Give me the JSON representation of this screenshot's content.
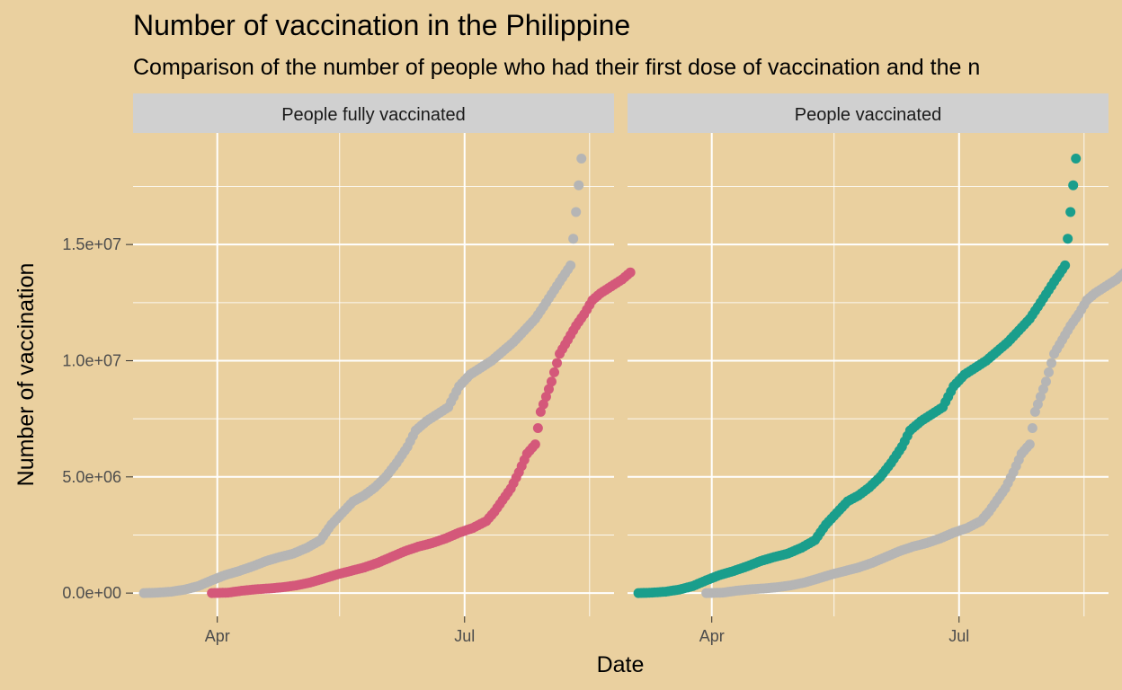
{
  "chart_data": {
    "type": "scatter",
    "title": "Number of vaccination in the Philippine",
    "subtitle": "Comparison of the number of people who had their first dose of vaccination and the n",
    "xlabel": "Date",
    "ylabel": "Number of vaccination",
    "x_range": [
      "2021-03-01",
      "2021-08-25"
    ],
    "ylim": [
      -1000000,
      19800000
    ],
    "x_ticks": [
      {
        "date": "2021-04-01",
        "label": "Apr"
      },
      {
        "date": "2021-07-01",
        "label": "Jul"
      }
    ],
    "y_ticks": [
      {
        "value": 0,
        "label": "0.0e+00"
      },
      {
        "value": 5000000,
        "label": "5.0e+06"
      },
      {
        "value": 10000000,
        "label": "1.0e+07"
      },
      {
        "value": 15000000,
        "label": "1.5e+07"
      }
    ],
    "grid": true,
    "legend": "none",
    "colors": {
      "background": "#EAD09F",
      "strip": "#D0D0D0",
      "grid": "#FFFFFF",
      "faded": "#B5B5B5",
      "people_fully_vaccinated": "#D4587A",
      "people_vaccinated": "#1A9E8C"
    },
    "people_vaccinated": [
      [
        "2021-03-05",
        0
      ],
      [
        "2021-03-10",
        20000
      ],
      [
        "2021-03-15",
        60000
      ],
      [
        "2021-03-20",
        150000
      ],
      [
        "2021-03-25",
        300000
      ],
      [
        "2021-03-30",
        550000
      ],
      [
        "2021-04-04",
        780000
      ],
      [
        "2021-04-09",
        950000
      ],
      [
        "2021-04-14",
        1150000
      ],
      [
        "2021-04-19",
        1380000
      ],
      [
        "2021-04-24",
        1550000
      ],
      [
        "2021-04-29",
        1700000
      ],
      [
        "2021-05-04",
        1950000
      ],
      [
        "2021-05-09",
        2280000
      ],
      [
        "2021-05-13",
        2950000
      ],
      [
        "2021-05-17",
        3450000
      ],
      [
        "2021-05-21",
        3950000
      ],
      [
        "2021-05-25",
        4200000
      ],
      [
        "2021-05-29",
        4550000
      ],
      [
        "2021-06-02",
        5000000
      ],
      [
        "2021-06-06",
        5600000
      ],
      [
        "2021-06-10",
        6300000
      ],
      [
        "2021-06-13",
        7000000
      ],
      [
        "2021-06-17",
        7400000
      ],
      [
        "2021-06-21",
        7700000
      ],
      [
        "2021-06-25",
        8000000
      ],
      [
        "2021-06-29",
        8900000
      ],
      [
        "2021-07-03",
        9400000
      ],
      [
        "2021-07-07",
        9700000
      ],
      [
        "2021-07-11",
        10000000
      ],
      [
        "2021-07-15",
        10400000
      ],
      [
        "2021-07-19",
        10800000
      ],
      [
        "2021-07-23",
        11300000
      ],
      [
        "2021-07-27",
        11800000
      ],
      [
        "2021-07-31",
        12500000
      ],
      [
        "2021-08-05",
        13400000
      ],
      [
        "2021-08-09",
        14100000
      ],
      [
        "2021-08-13",
        18700000
      ]
    ],
    "people_fully_vaccinated": [
      [
        "2021-03-30",
        0
      ],
      [
        "2021-04-05",
        20000
      ],
      [
        "2021-04-10",
        100000
      ],
      [
        "2021-04-15",
        160000
      ],
      [
        "2021-04-20",
        200000
      ],
      [
        "2021-04-25",
        250000
      ],
      [
        "2021-04-30",
        330000
      ],
      [
        "2021-05-05",
        450000
      ],
      [
        "2021-05-10",
        620000
      ],
      [
        "2021-05-15",
        800000
      ],
      [
        "2021-05-20",
        950000
      ],
      [
        "2021-05-25",
        1100000
      ],
      [
        "2021-05-30",
        1300000
      ],
      [
        "2021-06-04",
        1550000
      ],
      [
        "2021-06-09",
        1800000
      ],
      [
        "2021-06-14",
        2000000
      ],
      [
        "2021-06-19",
        2150000
      ],
      [
        "2021-06-24",
        2350000
      ],
      [
        "2021-06-29",
        2600000
      ],
      [
        "2021-07-04",
        2800000
      ],
      [
        "2021-07-09",
        3100000
      ],
      [
        "2021-07-12",
        3500000
      ],
      [
        "2021-07-15",
        4000000
      ],
      [
        "2021-07-18",
        4500000
      ],
      [
        "2021-07-21",
        5200000
      ],
      [
        "2021-07-24",
        6000000
      ],
      [
        "2021-07-27",
        6400000
      ],
      [
        "2021-07-29",
        7800000
      ],
      [
        "2021-08-02",
        9100000
      ],
      [
        "2021-08-05",
        10300000
      ],
      [
        "2021-08-07",
        10700000
      ],
      [
        "2021-08-11",
        11500000
      ],
      [
        "2021-08-14",
        12000000
      ],
      [
        "2021-08-17",
        12600000
      ],
      [
        "2021-08-20",
        12900000
      ],
      [
        "2021-08-24",
        13200000
      ],
      [
        "2021-08-28",
        13500000
      ],
      [
        "2021-08-31",
        13800000
      ]
    ],
    "panels": [
      {
        "strip": "People fully vaccinated",
        "highlight": "people_fully_vaccinated",
        "faded": "people_vaccinated"
      },
      {
        "strip": "People vaccinated",
        "highlight": "people_vaccinated",
        "faded": "people_fully_vaccinated"
      }
    ]
  }
}
